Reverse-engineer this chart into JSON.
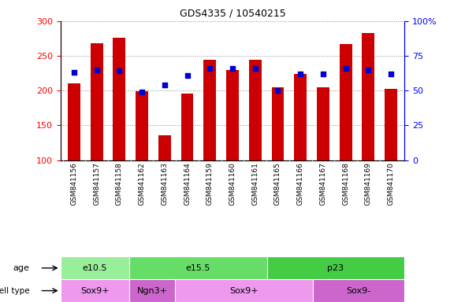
{
  "title": "GDS4335 / 10540215",
  "samples": [
    "GSM841156",
    "GSM841157",
    "GSM841158",
    "GSM841162",
    "GSM841163",
    "GSM841164",
    "GSM841159",
    "GSM841160",
    "GSM841161",
    "GSM841165",
    "GSM841166",
    "GSM841167",
    "GSM841168",
    "GSM841169",
    "GSM841170"
  ],
  "counts": [
    210,
    268,
    276,
    199,
    136,
    196,
    244,
    230,
    244,
    205,
    224,
    205,
    267,
    283,
    202
  ],
  "percentile_ranks": [
    63,
    65,
    64,
    49,
    54,
    61,
    66,
    66,
    66,
    50,
    62,
    62,
    66,
    65,
    62
  ],
  "ylim_left": [
    100,
    300
  ],
  "ylim_right": [
    0,
    100
  ],
  "yticks_left": [
    100,
    150,
    200,
    250,
    300
  ],
  "yticks_right": [
    0,
    25,
    50,
    75,
    100
  ],
  "bar_color": "#CC0000",
  "dot_color": "#0000CC",
  "bar_bottom": 100,
  "age_groups": [
    {
      "label": "e10.5",
      "start": 0,
      "end": 3,
      "color": "#99EE99"
    },
    {
      "label": "e15.5",
      "start": 3,
      "end": 9,
      "color": "#66DD66"
    },
    {
      "label": "p23",
      "start": 9,
      "end": 15,
      "color": "#44CC44"
    }
  ],
  "cell_type_groups": [
    {
      "label": "Sox9+",
      "start": 0,
      "end": 3,
      "color": "#EE99EE"
    },
    {
      "label": "Ngn3+",
      "start": 3,
      "end": 5,
      "color": "#CC66CC"
    },
    {
      "label": "Sox9+",
      "start": 5,
      "end": 11,
      "color": "#EE99EE"
    },
    {
      "label": "Sox9-",
      "start": 11,
      "end": 15,
      "color": "#CC66CC"
    }
  ],
  "xticklabel_bg": "#CCCCCC",
  "grid_color": "#888888",
  "plot_bg": "#FFFFFF"
}
